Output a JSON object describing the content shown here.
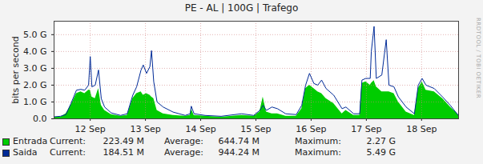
{
  "chart_data": {
    "type": "area",
    "title": "PE - AL | 100G | Trafego",
    "y_label": "bits per second",
    "annotations": [
      "RRDTOOL / TOBI OETIKER"
    ],
    "grid": true,
    "legend": "bottom",
    "x": [
      11.85,
      11.96,
      12.06,
      12.15,
      12.25,
      12.33,
      12.4,
      12.47,
      12.5,
      12.53,
      12.59,
      12.65,
      12.7,
      12.76,
      12.88,
      13.05,
      13.17,
      13.27,
      13.34,
      13.42,
      13.46,
      13.52,
      13.58,
      13.61,
      13.65,
      13.71,
      13.82,
      14.0,
      14.22,
      14.31,
      14.33,
      14.38,
      14.58,
      14.87,
      15.24,
      15.46,
      15.57,
      15.63,
      15.69,
      15.79,
      15.89,
      16.04,
      16.23,
      16.33,
      16.4,
      16.47,
      16.55,
      16.62,
      16.69,
      16.77,
      16.91,
      17.06,
      17.13,
      17.27,
      17.38,
      17.42,
      17.49,
      17.57,
      17.59,
      17.64,
      17.68,
      17.78,
      17.86,
      17.91,
      18.0,
      18.08,
      18.22,
      18.37,
      18.44,
      18.51,
      18.58,
      18.73,
      18.88,
      19.02,
      19.17
    ],
    "xlim": [
      11.845,
      19.17
    ],
    "xticks": [
      {
        "value": 12.5,
        "label": "12 Sep"
      },
      {
        "value": 13.5,
        "label": "13 Sep"
      },
      {
        "value": 14.5,
        "label": "14 Sep"
      },
      {
        "value": 15.5,
        "label": "15 Sep"
      },
      {
        "value": 16.5,
        "label": "16 Sep"
      },
      {
        "value": 17.5,
        "label": "17 Sep"
      },
      {
        "value": 18.5,
        "label": "18 Sep"
      }
    ],
    "ylim": [
      0,
      5.8
    ],
    "yticks": [
      {
        "value": 0,
        "label": "0.0"
      },
      {
        "value": 1,
        "label": "1.0 G"
      },
      {
        "value": 2,
        "label": "2.0 G"
      },
      {
        "value": 3,
        "label": "3.0 G"
      },
      {
        "value": 4,
        "label": "4.0 G"
      },
      {
        "value": 5,
        "label": "5.0 G"
      }
    ],
    "series": [
      {
        "name": "Entrada",
        "type": "area",
        "color": "#00cc00",
        "values": [
          0.1,
          0.1,
          0.3,
          0.8,
          1.5,
          1.6,
          1.5,
          1.7,
          1.7,
          1.3,
          1.2,
          1.8,
          0.8,
          0.5,
          0.25,
          0.15,
          0.2,
          1.2,
          1.5,
          1.6,
          1.4,
          1.5,
          1.4,
          1.3,
          1.2,
          0.5,
          0.3,
          0.2,
          0.15,
          0.2,
          0.6,
          0.2,
          0.15,
          0.1,
          0.2,
          0.15,
          0.4,
          1.3,
          0.4,
          0.3,
          0.3,
          0.15,
          0.15,
          0.6,
          1.8,
          2.0,
          1.8,
          1.6,
          1.5,
          1.2,
          0.9,
          0.3,
          0.5,
          0.2,
          0.2,
          2.1,
          2.2,
          2.0,
          2.1,
          2.27,
          1.9,
          1.6,
          1.6,
          1.6,
          1.5,
          1.0,
          0.4,
          0.2,
          1.8,
          2.2,
          1.7,
          1.6,
          1.2,
          0.7,
          0.22
        ],
        "stats": [
          {
            "label": "Current:",
            "value": "223.49 M"
          },
          {
            "label": "Average:",
            "value": "644.74 M"
          },
          {
            "label": "Maximum:",
            "value": "2.27 G"
          }
        ]
      },
      {
        "name": "Saida",
        "type": "line",
        "color": "#002a97",
        "values": [
          0.12,
          0.15,
          0.25,
          0.9,
          1.7,
          1.75,
          1.7,
          2.0,
          3.7,
          1.9,
          2.0,
          2.9,
          1.2,
          0.7,
          0.35,
          0.2,
          0.3,
          1.4,
          1.9,
          2.9,
          3.2,
          2.7,
          3.1,
          4.05,
          2.2,
          1.0,
          0.7,
          0.4,
          0.2,
          0.3,
          0.75,
          0.3,
          0.2,
          0.15,
          0.3,
          0.2,
          0.5,
          0.8,
          0.5,
          0.7,
          0.6,
          0.3,
          0.25,
          0.8,
          2.0,
          2.7,
          2.1,
          2.0,
          2.3,
          1.8,
          1.4,
          0.6,
          0.7,
          0.3,
          0.3,
          2.3,
          2.4,
          2.4,
          4.0,
          5.49,
          2.4,
          2.6,
          4.7,
          2.0,
          1.9,
          1.3,
          0.7,
          0.3,
          2.0,
          2.4,
          2.0,
          1.8,
          1.3,
          0.8,
          0.18
        ],
        "stats": [
          {
            "label": "Current:",
            "value": "184.51 M"
          },
          {
            "label": "Average:",
            "value": "944.24 M"
          },
          {
            "label": "Maximum:",
            "value": "5.49 G"
          }
        ]
      }
    ]
  }
}
